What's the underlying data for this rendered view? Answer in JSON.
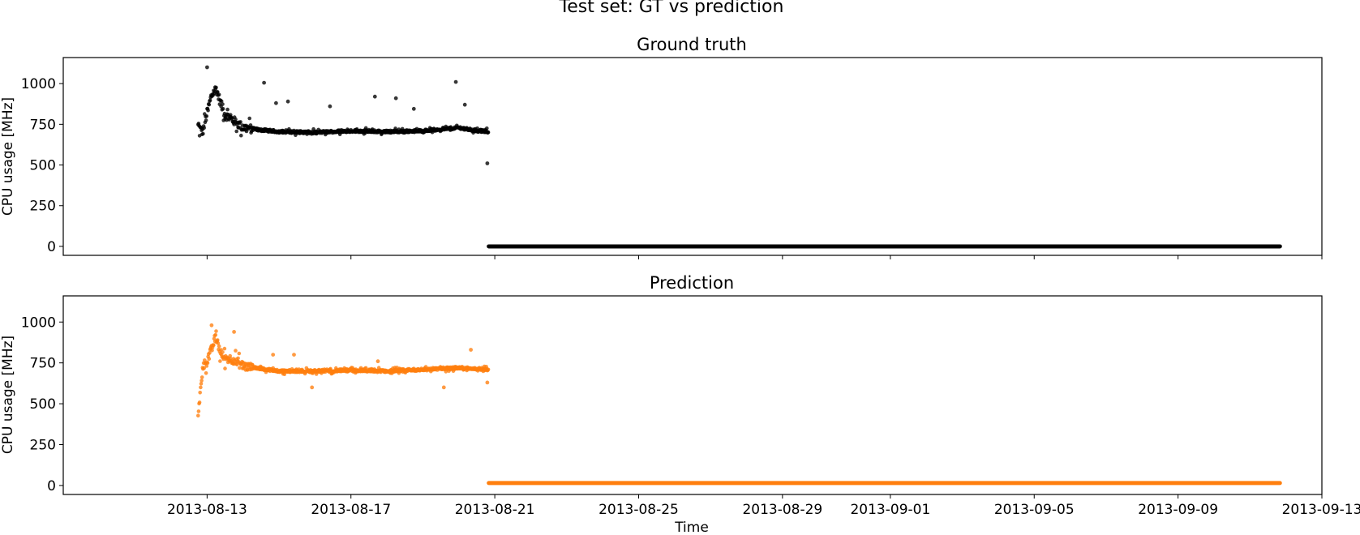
{
  "suptitle": "Test set: GT vs prediction",
  "colors": {
    "ground_truth": "#000000",
    "prediction": "#ff7f0e"
  },
  "chart_data": [
    {
      "type": "scatter",
      "title": "Ground truth",
      "xlabel": "",
      "ylabel": "CPU usage [MHz]",
      "ylim": [
        -55,
        1160
      ],
      "xlim": [
        "2013-08-09",
        "2013-09-13"
      ],
      "grid": false,
      "x_tick_labels": [],
      "y_ticks": [
        0,
        250,
        500,
        750,
        1000
      ],
      "color": "#000000",
      "series": [
        {
          "points": [
            [
              "2013-08-12T18:00",
              740
            ],
            [
              "2013-08-12T21:00",
              700
            ],
            [
              "2013-08-13T00:00",
              820
            ],
            [
              "2013-08-13T03:00",
              930
            ],
            [
              "2013-08-13T06:00",
              970
            ],
            [
              "2013-08-13T09:00",
              880
            ],
            [
              "2013-08-13T12:00",
              810
            ],
            [
              "2013-08-13T18:00",
              770
            ],
            [
              "2013-08-14T00:00",
              730
            ],
            [
              "2013-08-14T12:00",
              715
            ],
            [
              "2013-08-15T00:00",
              705
            ],
            [
              "2013-08-16T00:00",
              700
            ],
            [
              "2013-08-17T00:00",
              710
            ],
            [
              "2013-08-18T00:00",
              705
            ],
            [
              "2013-08-19T00:00",
              710
            ],
            [
              "2013-08-20T00:00",
              730
            ],
            [
              "2013-08-20T12:00",
              710
            ],
            [
              "2013-08-20T20:00",
              705
            ]
          ],
          "outliers": [
            [
              "2013-08-13T00:00",
              1100
            ],
            [
              "2013-08-14T14:00",
              1005
            ],
            [
              "2013-08-14T22:00",
              880
            ],
            [
              "2013-08-15T06:00",
              890
            ],
            [
              "2013-08-16T10:00",
              860
            ],
            [
              "2013-08-17T16:00",
              920
            ],
            [
              "2013-08-18T06:00",
              910
            ],
            [
              "2013-08-18T18:00",
              845
            ],
            [
              "2013-08-19T22:00",
              1010
            ],
            [
              "2013-08-20T04:00",
              870
            ],
            [
              "2013-08-20T19:00",
              510
            ]
          ],
          "constant_segment": {
            "from": "2013-08-20T20:00",
            "to": "2013-09-11T20:00",
            "value": 0
          }
        }
      ]
    },
    {
      "type": "scatter",
      "title": "Prediction",
      "xlabel": "Time",
      "ylabel": "CPU usage [MHz]",
      "ylim": [
        -55,
        1160
      ],
      "xlim": [
        "2013-08-09",
        "2013-09-13"
      ],
      "grid": false,
      "x_tick_labels": [
        "2013-08-13",
        "2013-08-17",
        "2013-08-21",
        "2013-08-25",
        "2013-08-29",
        "2013-09-01",
        "2013-09-05",
        "2013-09-09",
        "2013-09-13"
      ],
      "y_ticks": [
        0,
        250,
        500,
        750,
        1000
      ],
      "color": "#ff7f0e",
      "series": [
        {
          "points": [
            [
              "2013-08-12T18:00",
              410
            ],
            [
              "2013-08-12T21:00",
              730
            ],
            [
              "2013-08-13T00:00",
              760
            ],
            [
              "2013-08-13T03:00",
              830
            ],
            [
              "2013-08-13T06:00",
              920
            ],
            [
              "2013-08-13T09:00",
              800
            ],
            [
              "2013-08-13T12:00",
              780
            ],
            [
              "2013-08-13T18:00",
              770
            ],
            [
              "2013-08-14T00:00",
              730
            ],
            [
              "2013-08-14T12:00",
              715
            ],
            [
              "2013-08-15T00:00",
              700
            ],
            [
              "2013-08-16T00:00",
              700
            ],
            [
              "2013-08-17T00:00",
              705
            ],
            [
              "2013-08-18T00:00",
              700
            ],
            [
              "2013-08-19T00:00",
              710
            ],
            [
              "2013-08-20T00:00",
              720
            ],
            [
              "2013-08-20T12:00",
              715
            ],
            [
              "2013-08-20T20:00",
              710
            ]
          ],
          "outliers": [
            [
              "2013-08-13T03:00",
              980
            ],
            [
              "2013-08-13T18:00",
              940
            ],
            [
              "2013-08-14T20:00",
              800
            ],
            [
              "2013-08-15T10:00",
              800
            ],
            [
              "2013-08-15T22:00",
              600
            ],
            [
              "2013-08-17T18:00",
              760
            ],
            [
              "2013-08-19T14:00",
              600
            ],
            [
              "2013-08-20T08:00",
              830
            ],
            [
              "2013-08-20T19:00",
              630
            ]
          ],
          "constant_segment": {
            "from": "2013-08-20T20:00",
            "to": "2013-09-11T20:00",
            "value": 15
          }
        }
      ]
    }
  ]
}
